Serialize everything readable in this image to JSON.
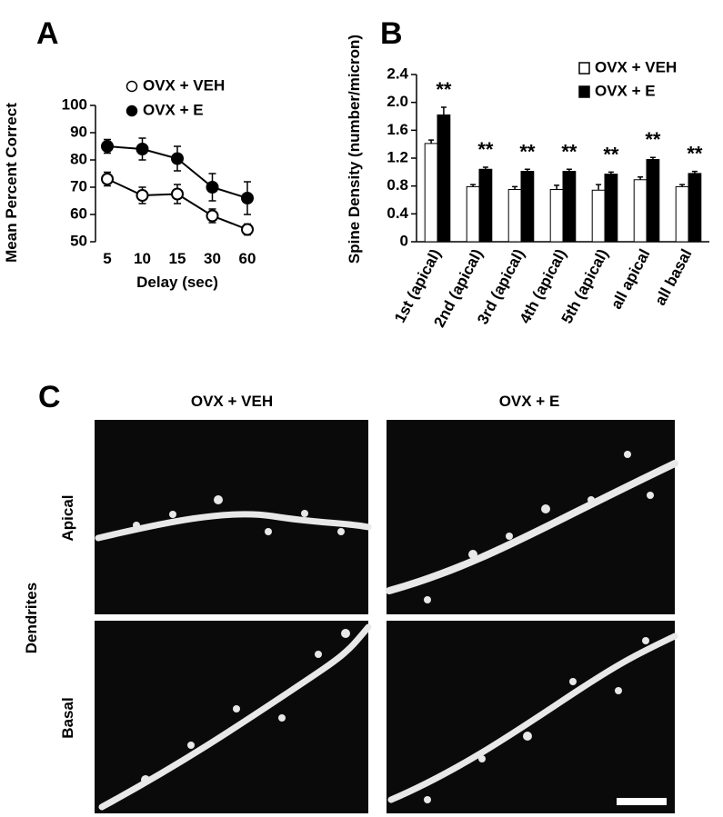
{
  "chart_data": [
    {
      "type": "line",
      "panel": "A",
      "x_label": "Delay (sec)",
      "y_label": "Mean Percent Correct",
      "categories": [
        "5",
        "10",
        "15",
        "30",
        "60"
      ],
      "series": [
        {
          "name": "OVX + VEH",
          "color": "#ffffff",
          "values": [
            73,
            67,
            67.5,
            59.5,
            54.5
          ],
          "errors": [
            2.5,
            3,
            3.5,
            2.5,
            2
          ]
        },
        {
          "name": "OVX + E",
          "color": "#000000",
          "values": [
            85,
            84,
            80.5,
            70,
            66
          ],
          "errors": [
            2.5,
            4,
            4.5,
            5,
            6
          ]
        }
      ],
      "ylim": [
        50,
        100
      ],
      "yticks": [
        50,
        60,
        70,
        80,
        90,
        100
      ]
    },
    {
      "type": "bar",
      "panel": "B",
      "y_label": "Spine Density (number/micron)",
      "categories": [
        "1st (apical)",
        "2nd (apical)",
        "3rd (apical)",
        "4th (apical)",
        "5th (apical)",
        "all apical",
        "all basal"
      ],
      "series": [
        {
          "name": "OVX + VEH",
          "color": "#ffffff",
          "values": [
            1.41,
            0.79,
            0.75,
            0.75,
            0.74,
            0.89,
            0.79
          ],
          "errors": [
            0.05,
            0.03,
            0.04,
            0.06,
            0.08,
            0.04,
            0.03
          ]
        },
        {
          "name": "OVX + E",
          "color": "#000000",
          "values": [
            1.82,
            1.04,
            1.01,
            1.01,
            0.97,
            1.18,
            0.98
          ],
          "errors": [
            0.11,
            0.03,
            0.03,
            0.03,
            0.03,
            0.03,
            0.03
          ]
        }
      ],
      "annotations": [
        "**",
        "**",
        "**",
        "**",
        "**",
        "**",
        "**"
      ],
      "ylim": [
        0,
        2.4
      ],
      "yticks": [
        0,
        0.4,
        0.8,
        1.2,
        1.6,
        {
          "value": 2,
          "label": "2.0"
        },
        2.4
      ]
    }
  ],
  "panel_c": {
    "label": "C",
    "columns": [
      "OVX + VEH",
      "OVX + E"
    ],
    "rows": [
      "Apical",
      "Basal"
    ],
    "row_group": "Dendrites"
  }
}
